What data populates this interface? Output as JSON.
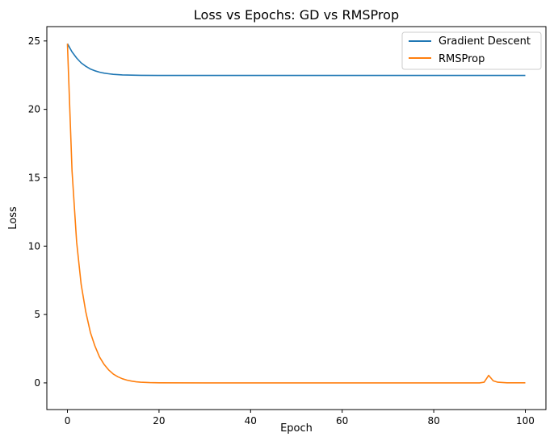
{
  "chart_data": {
    "type": "line",
    "title": "Loss vs Epochs: GD vs RMSProp",
    "xlabel": "Epoch",
    "ylabel": "Loss",
    "xlim": [
      -4.5,
      104.5
    ],
    "ylim": [
      -1.95,
      26.05
    ],
    "xticks": [
      0,
      20,
      40,
      60,
      80,
      100
    ],
    "yticks": [
      0,
      5,
      10,
      15,
      20,
      25
    ],
    "grid": false,
    "legend_position": "top-right",
    "series": [
      {
        "name": "Gradient Descent",
        "color": "#1f77b4",
        "points": [
          [
            0,
            24.8
          ],
          [
            1,
            24.2
          ],
          [
            2,
            23.75
          ],
          [
            3,
            23.4
          ],
          [
            4,
            23.15
          ],
          [
            5,
            22.95
          ],
          [
            6,
            22.82
          ],
          [
            7,
            22.72
          ],
          [
            8,
            22.65
          ],
          [
            9,
            22.6
          ],
          [
            10,
            22.56
          ],
          [
            12,
            22.52
          ],
          [
            14,
            22.5
          ],
          [
            16,
            22.49
          ],
          [
            20,
            22.48
          ],
          [
            40,
            22.48
          ],
          [
            60,
            22.48
          ],
          [
            80,
            22.48
          ],
          [
            100,
            22.48
          ]
        ]
      },
      {
        "name": "RMSProp",
        "color": "#ff7f0e",
        "points": [
          [
            0,
            24.8
          ],
          [
            1,
            15.5
          ],
          [
            2,
            10.3
          ],
          [
            3,
            7.2
          ],
          [
            4,
            5.2
          ],
          [
            5,
            3.7
          ],
          [
            6,
            2.7
          ],
          [
            7,
            1.9
          ],
          [
            8,
            1.35
          ],
          [
            9,
            0.95
          ],
          [
            10,
            0.65
          ],
          [
            11,
            0.45
          ],
          [
            12,
            0.3
          ],
          [
            13,
            0.2
          ],
          [
            14,
            0.13
          ],
          [
            15,
            0.08
          ],
          [
            16,
            0.05
          ],
          [
            18,
            0.02
          ],
          [
            20,
            0.01
          ],
          [
            30,
            0.0
          ],
          [
            50,
            0.0
          ],
          [
            70,
            0.0
          ],
          [
            90,
            0.0
          ],
          [
            91,
            0.05
          ],
          [
            92,
            0.55
          ],
          [
            93,
            0.15
          ],
          [
            94,
            0.05
          ],
          [
            96,
            0.01
          ],
          [
            100,
            0.01
          ]
        ]
      }
    ]
  }
}
